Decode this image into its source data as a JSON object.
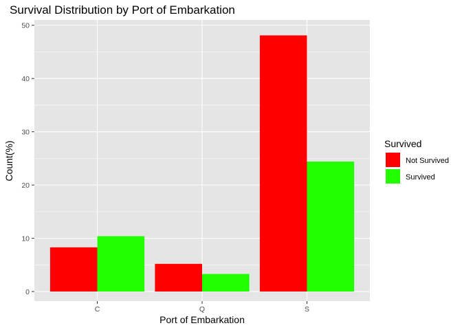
{
  "chart_data": {
    "type": "bar",
    "title": "Survival Distribution by Port of Embarkation",
    "xlabel": "Port of Embarkation",
    "ylabel": "Count(%)",
    "categories": [
      "C",
      "Q",
      "S"
    ],
    "series": [
      {
        "name": "Not Survived",
        "color": "#ff0000",
        "values": [
          8.3,
          5.2,
          48.1
        ]
      },
      {
        "name": "Survived",
        "color": "#22ff00",
        "values": [
          10.4,
          3.3,
          24.4
        ]
      }
    ],
    "ylim": [
      -1.8,
      51.0
    ],
    "yticks": [
      0,
      10,
      20,
      30,
      40,
      50
    ],
    "grid": true,
    "legend": {
      "title": "Survived",
      "position": "right"
    },
    "panel_background": "#e5e5e5",
    "gridline_color": "#ffffff"
  }
}
